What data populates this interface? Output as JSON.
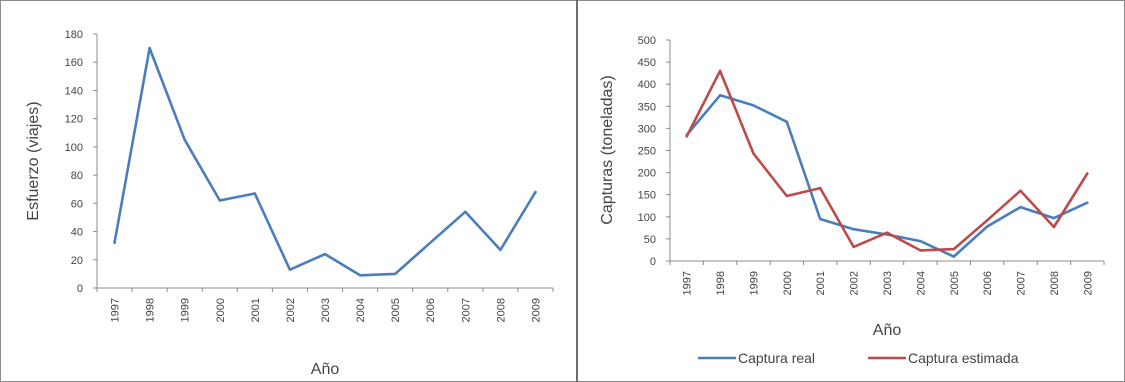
{
  "chart_data": [
    {
      "type": "line",
      "title": "",
      "xlabel": "Año",
      "ylabel": "Esfuerzo (viajes)",
      "categories": [
        "1997",
        "1998",
        "1999",
        "2000",
        "2001",
        "2002",
        "2003",
        "2004",
        "2005",
        "2006",
        "2007",
        "2008",
        "2009"
      ],
      "ylim": [
        0,
        180
      ],
      "yticks": [
        "0",
        "20",
        "40",
        "60",
        "80",
        "100",
        "120",
        "140",
        "160",
        "180"
      ],
      "grid": false,
      "legend": "none",
      "series": [
        {
          "color": "#4a7ebb",
          "values": [
            32,
            170,
            105,
            62,
            67,
            13,
            24,
            9,
            10,
            32,
            54,
            27,
            68
          ]
        }
      ]
    },
    {
      "type": "line",
      "title": "",
      "xlabel": "Año",
      "ylabel": "Capturas (toneladas)",
      "categories": [
        "1997",
        "1998",
        "1999",
        "2000",
        "2001",
        "2002",
        "2003",
        "2004",
        "2005",
        "2006",
        "2007",
        "2008",
        "2009"
      ],
      "ylim": [
        0,
        500
      ],
      "yticks": [
        "0",
        "50",
        "100",
        "150",
        "200",
        "250",
        "300",
        "350",
        "400",
        "450",
        "500"
      ],
      "grid": false,
      "legend": "bottom",
      "series": [
        {
          "name": "Captura real",
          "color": "#4a7ebb",
          "values": [
            285,
            375,
            352,
            315,
            95,
            72,
            60,
            45,
            10,
            78,
            122,
            97,
            132
          ]
        },
        {
          "name": "Captura estimada",
          "color": "#be4b48",
          "values": [
            282,
            430,
            243,
            147,
            165,
            32,
            64,
            24,
            27,
            92,
            159,
            77,
            198
          ]
        }
      ]
    }
  ]
}
